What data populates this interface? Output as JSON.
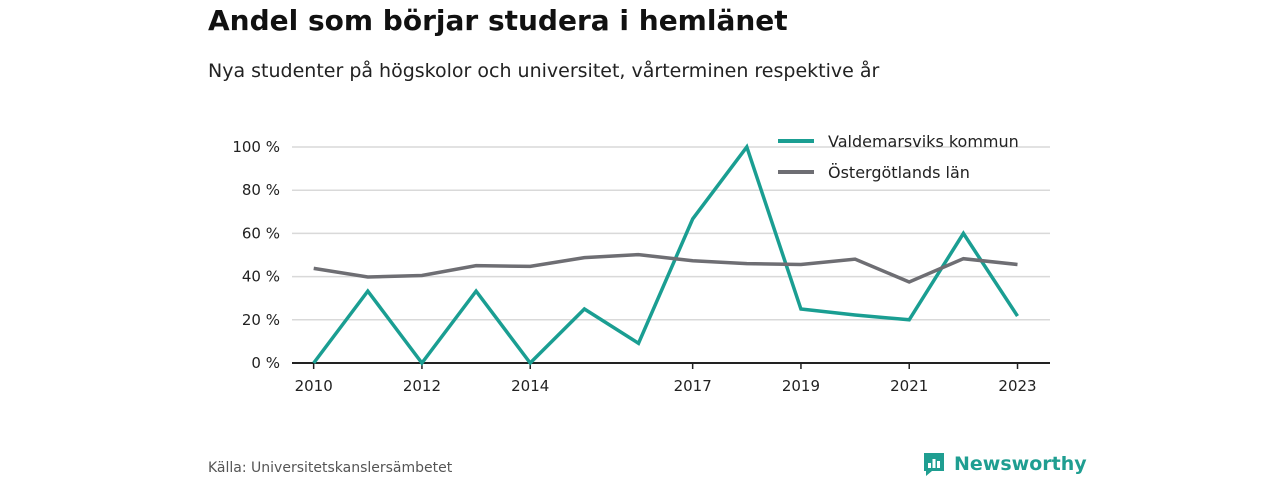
{
  "title": "Andel som börjar studera i hemlänet",
  "subtitle": "Nya studenter på högskolor och universitet, vårterminen respektive år",
  "source": "Källa: Universitetskanslersämbetet",
  "brand": "Newsworthy",
  "colors": {
    "valdemarsvik": "#1a9e92",
    "ostergotland": "#6e6e73",
    "grid": "#d9d9d9",
    "axis": "#222222",
    "brand": "#1f9e91"
  },
  "chart_data": {
    "type": "line",
    "title": "Andel som börjar studera i hemlänet",
    "subtitle": "Nya studenter på högskolor och universitet, vårterminen respektive år",
    "x": [
      2010,
      2011,
      2012,
      2013,
      2014,
      2015,
      2016,
      2017,
      2018,
      2019,
      2020,
      2021,
      2022,
      2023
    ],
    "x_tick_labels": [
      "2010",
      "2012",
      "2014",
      "2017",
      "2019",
      "2021",
      "2023"
    ],
    "y_ticks": [
      0,
      20,
      40,
      60,
      80,
      100
    ],
    "y_tick_labels": [
      "0 %",
      "20 %",
      "40 %",
      "60 %",
      "80 %",
      "100 %"
    ],
    "ylim": [
      0,
      100
    ],
    "xlim": [
      2009.6,
      2023.6
    ],
    "grid": true,
    "legend_position": "top-right",
    "series": [
      {
        "name": "Valdemarsviks kommun",
        "color": "#1a9e92",
        "values": [
          0,
          33.3,
          0,
          33.3,
          0,
          25,
          9.1,
          66.7,
          100,
          25,
          22.2,
          20,
          60,
          21.7
        ]
      },
      {
        "name": "Östergötlands län",
        "color": "#6e6e73",
        "values": [
          43.8,
          39.8,
          40.5,
          45.1,
          44.7,
          48.8,
          50.2,
          47.3,
          46.0,
          45.6,
          48.1,
          37.5,
          48.3,
          45.6
        ]
      }
    ]
  }
}
